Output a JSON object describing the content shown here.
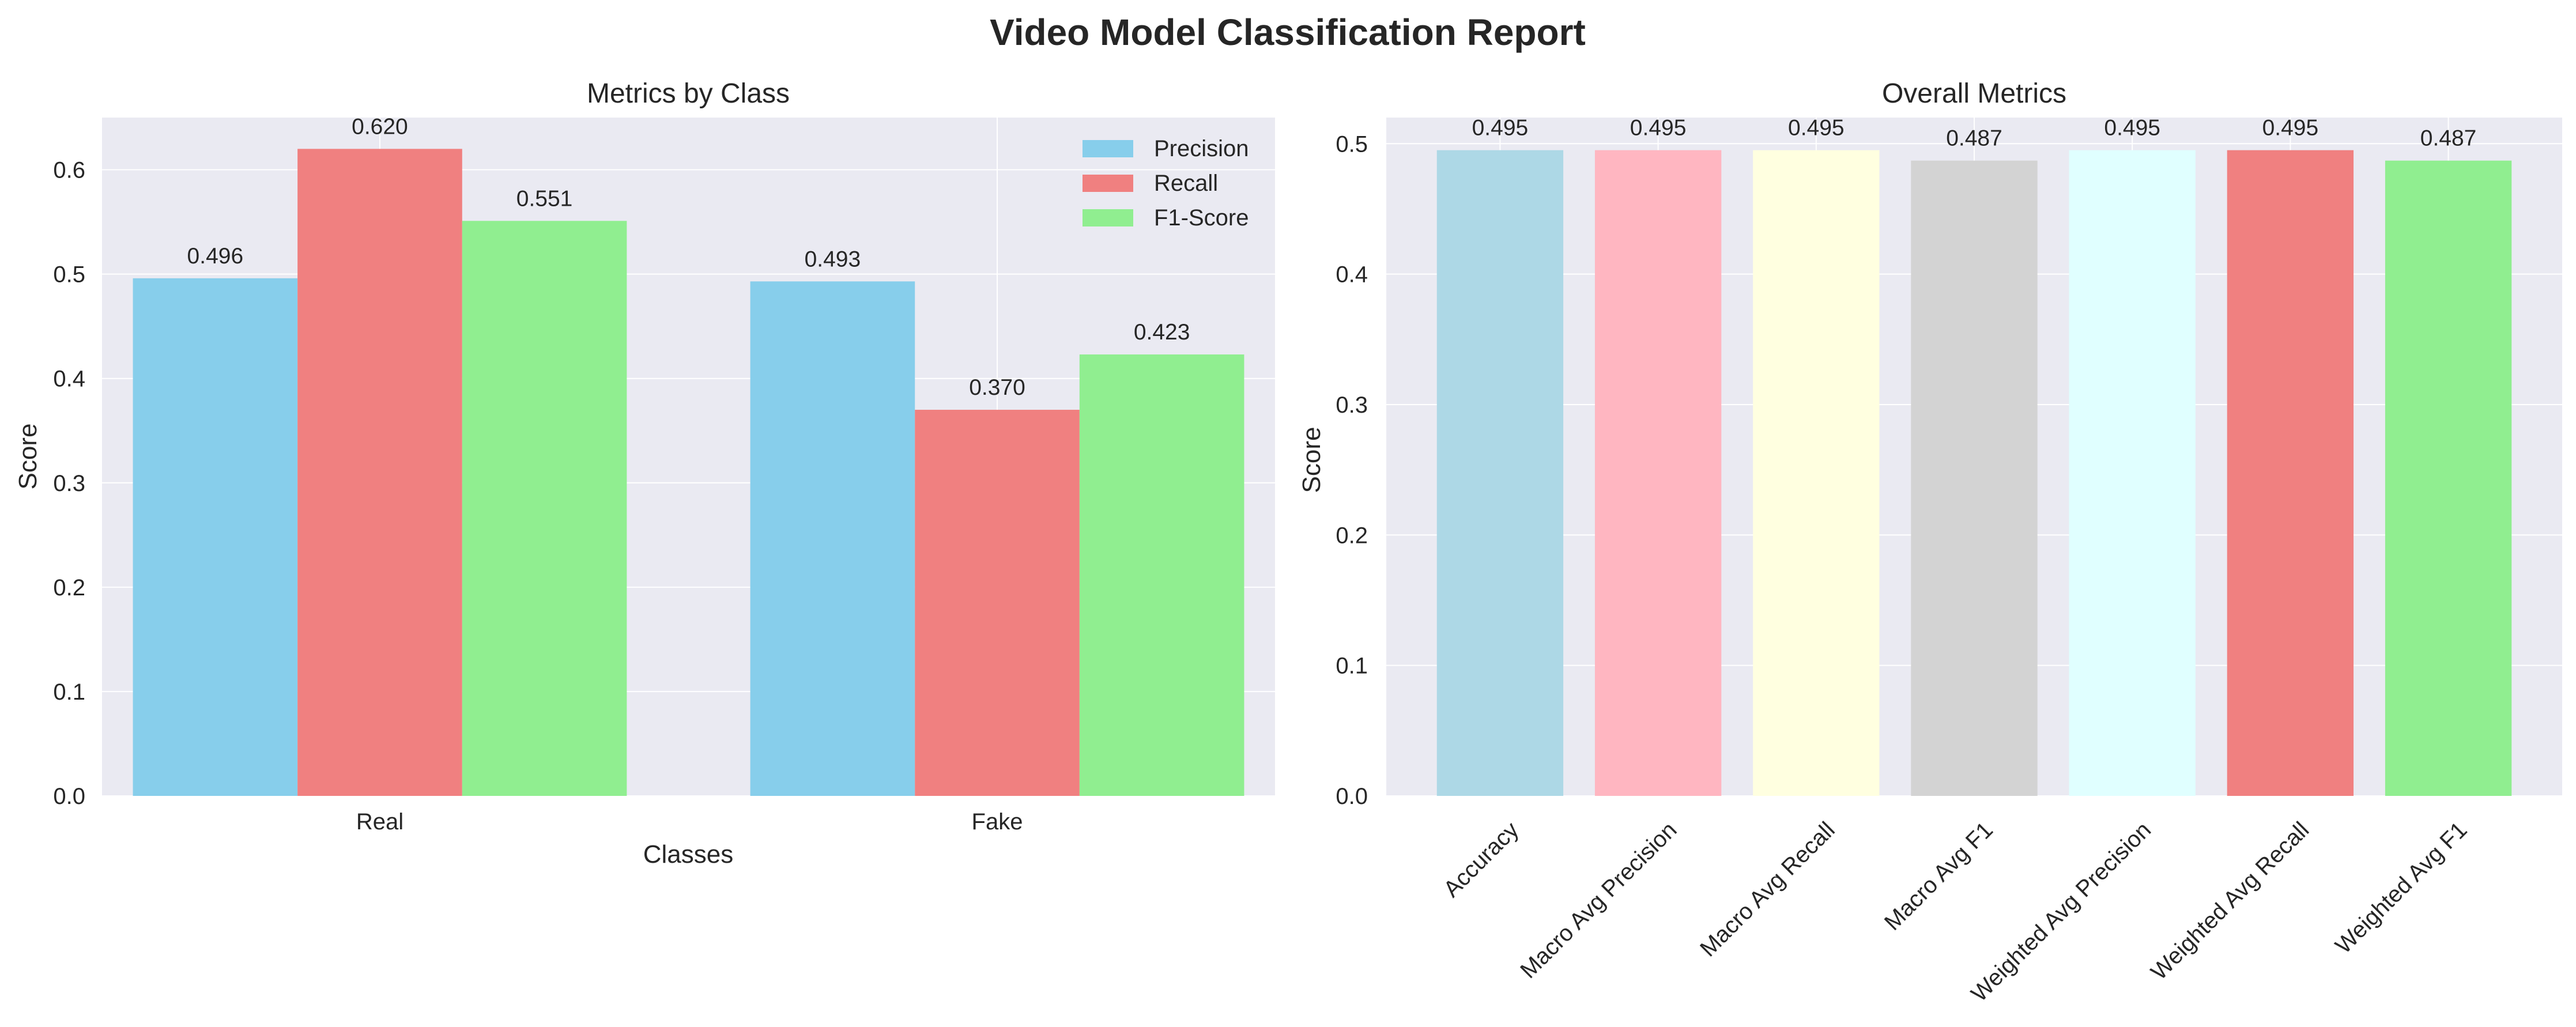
{
  "title": "Video Model Classification Report",
  "charts": {
    "left": {
      "title": "Metrics by Class",
      "xlabel": "Classes",
      "ylabel": "Score",
      "yticks": [
        "0.0",
        "0.1",
        "0.2",
        "0.3",
        "0.4",
        "0.5",
        "0.6"
      ]
    },
    "right": {
      "title": "Overall Metrics",
      "ylabel": "Score",
      "yticks": [
        "0.0",
        "0.1",
        "0.2",
        "0.3",
        "0.4",
        "0.5"
      ]
    }
  },
  "chart_data": [
    {
      "type": "bar",
      "title": "Metrics by Class",
      "xlabel": "Classes",
      "ylabel": "Score",
      "ylim": [
        0,
        0.65
      ],
      "grid": true,
      "legend": "top-right",
      "categories": [
        "Real",
        "Fake"
      ],
      "series": [
        {
          "name": "Precision",
          "color": "#87ceeb",
          "values": [
            0.496,
            0.493
          ],
          "labels": [
            "0.496",
            "0.493"
          ]
        },
        {
          "name": "Recall",
          "color": "#f08080",
          "values": [
            0.62,
            0.37
          ],
          "labels": [
            "0.620",
            "0.370"
          ]
        },
        {
          "name": "F1-Score",
          "color": "#90ee90",
          "values": [
            0.551,
            0.423
          ],
          "labels": [
            "0.551",
            "0.423"
          ]
        }
      ]
    },
    {
      "type": "bar",
      "title": "Overall Metrics",
      "xlabel": "",
      "ylabel": "Score",
      "ylim": [
        0,
        0.52
      ],
      "grid": true,
      "categories": [
        "Accuracy",
        "Macro Avg Precision",
        "Macro Avg Recall",
        "Macro Avg F1",
        "Weighted Avg Precision",
        "Weighted Avg Recall",
        "Weighted Avg F1"
      ],
      "values": [
        0.495,
        0.495,
        0.495,
        0.487,
        0.495,
        0.495,
        0.487
      ],
      "labels": [
        "0.495",
        "0.495",
        "0.495",
        "0.487",
        "0.495",
        "0.495",
        "0.487"
      ],
      "colors": [
        "#add8e6",
        "#ffb6c1",
        "#ffffe0",
        "#d3d3d3",
        "#e0ffff",
        "#f08080",
        "#90ee90"
      ]
    }
  ]
}
